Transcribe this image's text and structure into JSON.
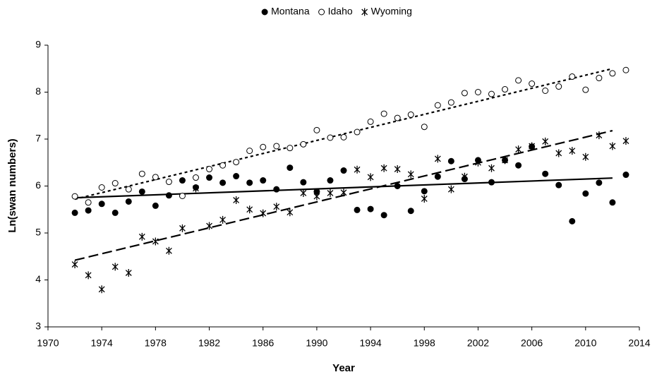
{
  "chart_data": {
    "type": "scatter",
    "x_label": "Year",
    "y_label": "Ln(swan numbers)",
    "x": [
      1972,
      1973,
      1974,
      1975,
      1976,
      1977,
      1978,
      1979,
      1980,
      1981,
      1982,
      1983,
      1984,
      1985,
      1986,
      1987,
      1988,
      1989,
      1990,
      1991,
      1992,
      1993,
      1994,
      1995,
      1996,
      1997,
      1998,
      1999,
      2000,
      2001,
      2002,
      2003,
      2004,
      2005,
      2006,
      2007,
      2008,
      2009,
      2010,
      2011,
      2012,
      2013
    ],
    "series": [
      {
        "name": "Montana",
        "color": "#000000",
        "marker": "filled-circle",
        "trend_style": "solid",
        "values": [
          5.43,
          5.48,
          5.62,
          5.43,
          5.67,
          5.88,
          5.58,
          5.8,
          6.12,
          5.97,
          6.18,
          6.07,
          6.21,
          6.07,
          6.12,
          5.93,
          6.39,
          6.08,
          5.88,
          6.12,
          6.33,
          5.49,
          5.51,
          5.38,
          6.0,
          5.47,
          5.89,
          6.2,
          6.53,
          6.15,
          6.55,
          6.08,
          6.55,
          6.44,
          6.84,
          6.26,
          6.02,
          5.25,
          5.84,
          6.07,
          5.65,
          6.24
        ],
        "trendline": {
          "x": [
            1972,
            2012
          ],
          "y": [
            5.75,
            6.17
          ]
        }
      },
      {
        "name": "Idaho",
        "color": "#000000",
        "marker": "open-circle",
        "trend_style": "dotted",
        "values": [
          5.78,
          5.65,
          5.97,
          6.06,
          5.93,
          6.26,
          6.19,
          6.09,
          5.79,
          6.18,
          6.36,
          6.44,
          6.51,
          6.75,
          6.83,
          6.85,
          6.81,
          6.89,
          7.19,
          7.03,
          7.04,
          7.15,
          7.37,
          7.54,
          7.45,
          7.52,
          7.26,
          7.72,
          7.78,
          7.98,
          8.0,
          7.96,
          8.06,
          8.25,
          8.18,
          8.03,
          8.12,
          8.33,
          8.05,
          8.3,
          8.4,
          8.47
        ],
        "trendline": {
          "x": [
            1972,
            2012
          ],
          "y": [
            5.72,
            8.5
          ]
        }
      },
      {
        "name": "Wyoming",
        "color": "#000000",
        "marker": "asterisk",
        "trend_style": "dashed",
        "values": [
          4.33,
          4.1,
          3.8,
          4.28,
          4.15,
          4.92,
          4.82,
          4.62,
          5.1,
          5.95,
          5.15,
          5.28,
          5.7,
          5.5,
          5.42,
          5.56,
          5.44,
          5.85,
          5.78,
          5.85,
          5.86,
          6.35,
          6.19,
          6.38,
          6.36,
          6.25,
          5.73,
          6.58,
          5.93,
          6.2,
          6.5,
          6.38,
          6.55,
          6.78,
          6.85,
          6.95,
          6.7,
          6.75,
          6.62,
          7.08,
          6.85,
          6.96
        ],
        "trendline": {
          "x": [
            1972,
            2012
          ],
          "y": [
            4.42,
            7.18
          ]
        }
      }
    ],
    "xlim": [
      1970,
      2014
    ],
    "xticks": [
      1970,
      1974,
      1978,
      1982,
      1986,
      1990,
      1994,
      1998,
      2002,
      2006,
      2010,
      2014
    ],
    "ylim": [
      3,
      9
    ],
    "yticks": [
      3,
      4,
      5,
      6,
      7,
      8,
      9
    ],
    "grid": false,
    "legend": "top"
  }
}
